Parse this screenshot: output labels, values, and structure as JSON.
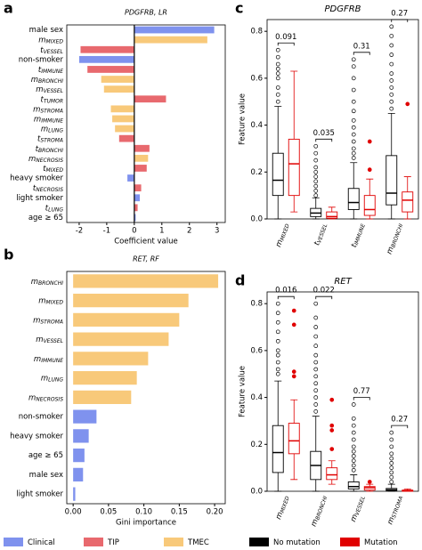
{
  "chart_data": [
    {
      "type": "hbar",
      "letter": "a",
      "title": "PDGFRB, LR",
      "xlabel": "Coefficient value",
      "categories": [
        "male sex",
        "mMIXED",
        "tVESSEL",
        "non-smoker",
        "tIMMUNE",
        "mBRONCHI",
        "mVESSEL",
        "tTUMOR",
        "mSTROMA",
        "mIMMUNE",
        "mLUNG",
        "tSTROMA",
        "tBRONCHI",
        "mNECROSIS",
        "tMIXED",
        "heavy smoker",
        "tNECROSIS",
        "light smoker",
        "tLUNG",
        "age ≥ 65"
      ],
      "values": [
        2.9,
        2.65,
        -1.95,
        -2.0,
        -1.7,
        -1.2,
        -1.1,
        1.15,
        -0.85,
        -0.8,
        -0.7,
        -0.55,
        0.55,
        0.5,
        0.45,
        -0.25,
        0.25,
        0.2,
        0.12,
        0.05
      ],
      "colors": [
        "#7f92ee",
        "#f8c97a",
        "#e8696e",
        "#7f92ee",
        "#e8696e",
        "#f8c97a",
        "#f8c97a",
        "#e8696e",
        "#f8c97a",
        "#f8c97a",
        "#f8c97a",
        "#e8696e",
        "#e8696e",
        "#f8c97a",
        "#e8696e",
        "#7f92ee",
        "#e8696e",
        "#7f92ee",
        "#e8696e",
        "#7f92ee"
      ],
      "xlim": [
        -2.45,
        3.3
      ],
      "xticks": [
        -2,
        -1,
        0,
        1,
        2,
        3
      ],
      "zero_line": true
    },
    {
      "type": "hbar",
      "letter": "b",
      "title": "RET, RF",
      "xlabel": "Gini importance",
      "categories": [
        "mBRONCHI",
        "mMIXED",
        "mSTROMA",
        "mVESSEL",
        "mIMMUNE",
        "mLUNG",
        "mNECROSIS",
        "non-smoker",
        "heavy smoker",
        "age ≥ 65",
        "male sex",
        "light smoker"
      ],
      "values": [
        0.205,
        0.163,
        0.15,
        0.135,
        0.106,
        0.09,
        0.082,
        0.033,
        0.022,
        0.016,
        0.014,
        0.003
      ],
      "colors": [
        "#f8c97a",
        "#f8c97a",
        "#f8c97a",
        "#f8c97a",
        "#f8c97a",
        "#f8c97a",
        "#f8c97a",
        "#7f92ee",
        "#7f92ee",
        "#7f92ee",
        "#7f92ee",
        "#7f92ee"
      ],
      "xlim": [
        -0.009,
        0.215
      ],
      "xticks": [
        {
          "value": 0,
          "label": "0.00"
        },
        {
          "value": 0.05,
          "label": "0.05"
        },
        {
          "value": 0.1,
          "label": "0.10"
        },
        {
          "value": 0.15,
          "label": "0.15"
        },
        {
          "value": 0.2,
          "label": "0.20"
        }
      ],
      "zero_line": false
    },
    {
      "type": "box",
      "letter": "c",
      "title": "PDGFRB",
      "ylabel": "Feature value",
      "categories": [
        "mMIXED",
        "tVESSEL",
        "tIMMUNE",
        "mBRONCHI"
      ],
      "annotations": [
        "0.091",
        "0.035",
        "0.31",
        "0.27"
      ],
      "ylim": [
        0,
        0.85
      ],
      "yticks": [
        {
          "value": 0,
          "label": "0.0"
        },
        {
          "value": 0.2,
          "label": "0.2"
        },
        {
          "value": 0.4,
          "label": "0.4"
        },
        {
          "value": 0.6,
          "label": "0.6"
        },
        {
          "value": 0.8,
          "label": "0.8"
        }
      ],
      "series": [
        {
          "name": "No mutation",
          "color": "#000000",
          "boxes": [
            {
              "whislo": 0,
              "q1": 0.1,
              "med": 0.165,
              "q3": 0.28,
              "whishi": 0.48,
              "fliers": [
                0.5,
                0.53,
                0.56,
                0.6,
                0.62,
                0.64,
                0.66,
                0.69,
                0.72
              ]
            },
            {
              "whislo": 0,
              "q1": 0.01,
              "med": 0.025,
              "q3": 0.045,
              "whishi": 0.09,
              "fliers": [
                0.1,
                0.12,
                0.14,
                0.16,
                0.18,
                0.2,
                0.22,
                0.25,
                0.28,
                0.31
              ]
            },
            {
              "whislo": 0,
              "q1": 0.04,
              "med": 0.07,
              "q3": 0.13,
              "whishi": 0.24,
              "fliers": [
                0.26,
                0.28,
                0.3,
                0.33,
                0.36,
                0.39,
                0.42,
                0.46,
                0.5,
                0.55,
                0.6,
                0.65,
                0.68
              ]
            },
            {
              "whislo": 0,
              "q1": 0.06,
              "med": 0.11,
              "q3": 0.27,
              "whishi": 0.45,
              "fliers": [
                0.47,
                0.5,
                0.53,
                0.56,
                0.59,
                0.62,
                0.66,
                0.7,
                0.74,
                0.78,
                0.82
              ]
            }
          ]
        },
        {
          "name": "Mutation",
          "color": "#e00000",
          "boxes": [
            {
              "whislo": 0.03,
              "q1": 0.1,
              "med": 0.235,
              "q3": 0.34,
              "whishi": 0.63,
              "fliers": []
            },
            {
              "whislo": 0,
              "q1": 0.003,
              "med": 0.01,
              "q3": 0.03,
              "whishi": 0.05,
              "fliers": []
            },
            {
              "whislo": 0,
              "q1": 0.015,
              "med": 0.04,
              "q3": 0.1,
              "whishi": 0.17,
              "fliers": [
                0.21,
                0.33
              ]
            },
            {
              "whislo": 0,
              "q1": 0.03,
              "med": 0.08,
              "q3": 0.115,
              "whishi": 0.18,
              "fliers": [
                0.49
              ]
            }
          ]
        }
      ]
    },
    {
      "type": "box",
      "letter": "d",
      "title": "RET",
      "ylabel": "Feature value",
      "categories": [
        "mMIXED",
        "mBRONCHI",
        "mVESSEL",
        "mSTROMA"
      ],
      "annotations": [
        "0.016",
        "0.022",
        "0.77",
        "0.27"
      ],
      "ylim": [
        0,
        0.85
      ],
      "yticks": [
        {
          "value": 0,
          "label": "0.0"
        },
        {
          "value": 0.2,
          "label": "0.2"
        },
        {
          "value": 0.4,
          "label": "0.4"
        },
        {
          "value": 0.6,
          "label": "0.6"
        },
        {
          "value": 0.8,
          "label": "0.8"
        }
      ],
      "series": [
        {
          "name": "No mutation",
          "color": "#000000",
          "boxes": [
            {
              "whislo": 0,
              "q1": 0.08,
              "med": 0.165,
              "q3": 0.28,
              "whishi": 0.47,
              "fliers": [
                0.5,
                0.52,
                0.55,
                0.58,
                0.6,
                0.64,
                0.68,
                0.72,
                0.76,
                0.8
              ]
            },
            {
              "whislo": 0,
              "q1": 0.05,
              "med": 0.11,
              "q3": 0.17,
              "whishi": 0.32,
              "fliers": [
                0.34,
                0.37,
                0.4,
                0.43,
                0.46,
                0.49,
                0.52,
                0.55,
                0.58,
                0.62,
                0.66,
                0.7,
                0.74,
                0.8
              ]
            },
            {
              "whislo": 0,
              "q1": 0.01,
              "med": 0.02,
              "q3": 0.04,
              "whishi": 0.07,
              "fliers": [
                0.09,
                0.11,
                0.13,
                0.15,
                0.17,
                0.19,
                0.22,
                0.25,
                0.28,
                0.31,
                0.37
              ]
            },
            {
              "whislo": 0,
              "q1": 0.002,
              "med": 0.006,
              "q3": 0.012,
              "whishi": 0.03,
              "fliers": [
                0.04,
                0.06,
                0.08,
                0.1,
                0.12,
                0.14,
                0.16,
                0.19,
                0.22,
                0.25
              ]
            }
          ]
        },
        {
          "name": "Mutation",
          "color": "#e00000",
          "boxes": [
            {
              "whislo": 0.05,
              "q1": 0.16,
              "med": 0.215,
              "q3": 0.29,
              "whishi": 0.39,
              "fliers": [
                0.49,
                0.51,
                0.71,
                0.77
              ]
            },
            {
              "whislo": 0.03,
              "q1": 0.05,
              "med": 0.07,
              "q3": 0.1,
              "whishi": 0.13,
              "fliers": [
                0.18,
                0.26,
                0.28,
                0.39
              ]
            },
            {
              "whislo": 0,
              "q1": 0.005,
              "med": 0.015,
              "q3": 0.02,
              "whishi": 0.03,
              "fliers": [
                0.04
              ]
            },
            {
              "whislo": 0,
              "q1": 0,
              "med": 0.002,
              "q3": 0.005,
              "whishi": 0.01,
              "fliers": []
            }
          ]
        }
      ]
    }
  ],
  "legend": [
    {
      "name": "Clinical",
      "color": "#7f92ee"
    },
    {
      "name": "TIP",
      "color": "#e8696e"
    },
    {
      "name": "TMEC",
      "color": "#f8c97a"
    },
    {
      "name": "No mutation",
      "color": "#000000"
    },
    {
      "name": "Mutation",
      "color": "#e00000"
    }
  ]
}
